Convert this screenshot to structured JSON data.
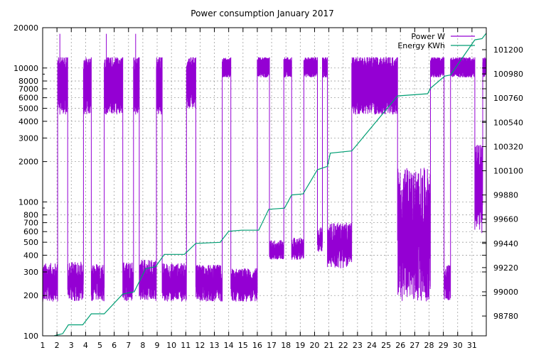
{
  "chart_data": {
    "type": "line",
    "title": "Power consumption January 2017",
    "x": {
      "min": 1,
      "max": 32,
      "ticks": [
        1,
        2,
        3,
        4,
        5,
        6,
        7,
        8,
        9,
        10,
        11,
        12,
        13,
        14,
        15,
        16,
        17,
        18,
        19,
        20,
        21,
        22,
        23,
        24,
        25,
        26,
        27,
        28,
        29,
        30,
        31
      ],
      "tick_labels": [
        "1",
        "2",
        "3",
        "4",
        "5",
        "6",
        "7",
        "8",
        "9",
        "10",
        "11",
        "12",
        "13",
        "14",
        "15",
        "16",
        "17",
        "18",
        "19",
        "20",
        "21",
        "22",
        "23",
        "24",
        "25",
        "26",
        "27",
        "28",
        "29",
        "30",
        "31"
      ]
    },
    "y_left": {
      "scale": "log",
      "min": 100,
      "max": 20000,
      "ticks": [
        100,
        200,
        300,
        400,
        500,
        600,
        700,
        800,
        1000,
        2000,
        3000,
        4000,
        5000,
        6000,
        7000,
        8000,
        10000,
        20000
      ],
      "tick_labels": [
        "100",
        "200",
        "300",
        "400",
        "500",
        "600",
        "700",
        "800",
        "1000",
        "2000",
        "3000",
        "4000",
        "5000",
        "6000",
        "7000",
        "8000",
        "10000",
        "20000"
      ]
    },
    "y_right": {
      "scale": "linear",
      "min": 98600,
      "max": 101400,
      "ticks": [
        98780,
        99000,
        99220,
        99440,
        99660,
        99880,
        100100,
        100320,
        100540,
        100760,
        100980,
        101200
      ],
      "tick_labels": [
        "98780",
        "99000",
        "99220",
        "99440",
        "99660",
        "99880",
        "100100",
        "100320",
        "100540",
        "100760",
        "100980",
        "101200"
      ]
    },
    "grid": true,
    "legend_position": "top-right",
    "series": [
      {
        "name": "Power W",
        "axis": "left",
        "color": "#9400d3",
        "segments": [
          {
            "from": 1.0,
            "to": 2.05,
            "level": "low",
            "low": 180,
            "high": 350
          },
          {
            "from": 2.05,
            "to": 2.75,
            "level": "high",
            "low": 4500,
            "high": 12000,
            "spike": 18000
          },
          {
            "from": 2.75,
            "to": 3.85,
            "level": "low",
            "low": 180,
            "high": 360
          },
          {
            "from": 3.85,
            "to": 4.4,
            "level": "high",
            "low": 4500,
            "high": 12000
          },
          {
            "from": 4.4,
            "to": 5.3,
            "level": "low",
            "low": 180,
            "high": 350
          },
          {
            "from": 5.3,
            "to": 6.6,
            "level": "high",
            "low": 4500,
            "high": 12000,
            "spike": 18000
          },
          {
            "from": 6.6,
            "to": 7.35,
            "level": "low",
            "low": 180,
            "high": 360
          },
          {
            "from": 7.35,
            "to": 7.75,
            "level": "high",
            "low": 4500,
            "high": 12000,
            "spike": 18000
          },
          {
            "from": 7.75,
            "to": 8.95,
            "level": "low",
            "low": 180,
            "high": 370
          },
          {
            "from": 8.95,
            "to": 9.35,
            "level": "high",
            "low": 4500,
            "high": 12000
          },
          {
            "from": 9.35,
            "to": 11.05,
            "level": "low",
            "low": 180,
            "high": 350
          },
          {
            "from": 11.05,
            "to": 11.7,
            "level": "high",
            "low": 5000,
            "high": 12000
          },
          {
            "from": 11.7,
            "to": 13.55,
            "level": "low",
            "low": 180,
            "high": 340
          },
          {
            "from": 13.55,
            "to": 14.15,
            "level": "high",
            "low": 8500,
            "high": 12000
          },
          {
            "from": 14.15,
            "to": 16.0,
            "level": "low",
            "low": 180,
            "high": 320
          },
          {
            "from": 16.0,
            "to": 16.85,
            "level": "high",
            "low": 8500,
            "high": 12000
          },
          {
            "from": 16.85,
            "to": 17.85,
            "level": "low",
            "low": 370,
            "high": 520
          },
          {
            "from": 17.85,
            "to": 18.4,
            "level": "high",
            "low": 8500,
            "high": 12000
          },
          {
            "from": 18.4,
            "to": 19.25,
            "level": "low",
            "low": 370,
            "high": 540
          },
          {
            "from": 19.25,
            "to": 20.2,
            "level": "high",
            "low": 8500,
            "high": 12000
          },
          {
            "from": 20.2,
            "to": 20.55,
            "level": "low",
            "low": 420,
            "high": 650
          },
          {
            "from": 20.55,
            "to": 20.9,
            "level": "high",
            "low": 8500,
            "high": 12000
          },
          {
            "from": 20.9,
            "to": 22.6,
            "level": "low",
            "low": 320,
            "high": 700
          },
          {
            "from": 22.6,
            "to": 25.8,
            "level": "high",
            "low": 4500,
            "high": 12000
          },
          {
            "from": 25.8,
            "to": 28.1,
            "level": "low",
            "low": 180,
            "high": 1800
          },
          {
            "from": 28.1,
            "to": 29.05,
            "level": "high",
            "low": 8500,
            "high": 12000
          },
          {
            "from": 29.05,
            "to": 29.5,
            "level": "low",
            "low": 180,
            "high": 340
          },
          {
            "from": 29.5,
            "to": 31.2,
            "level": "high",
            "low": 8500,
            "high": 12000
          },
          {
            "from": 31.2,
            "to": 31.75,
            "level": "low",
            "low": 580,
            "high": 2700
          },
          {
            "from": 31.75,
            "to": 32.0,
            "level": "high",
            "low": 8500,
            "high": 12000
          }
        ]
      },
      {
        "name": "Energy KWh",
        "axis": "right",
        "color": "#009e73",
        "points": [
          [
            1.8,
            98600
          ],
          [
            2.4,
            98620
          ],
          [
            2.8,
            98700
          ],
          [
            3.8,
            98700
          ],
          [
            4.4,
            98800
          ],
          [
            5.3,
            98800
          ],
          [
            6.6,
            98980
          ],
          [
            7.4,
            99000
          ],
          [
            8.2,
            99210
          ],
          [
            8.9,
            99230
          ],
          [
            9.5,
            99340
          ],
          [
            10.9,
            99340
          ],
          [
            11.7,
            99440
          ],
          [
            13.4,
            99450
          ],
          [
            14.0,
            99550
          ],
          [
            14.9,
            99560
          ],
          [
            16.1,
            99560
          ],
          [
            16.8,
            99750
          ],
          [
            17.9,
            99760
          ],
          [
            18.4,
            99880
          ],
          [
            19.2,
            99890
          ],
          [
            20.2,
            100110
          ],
          [
            20.9,
            100140
          ],
          [
            21.1,
            100260
          ],
          [
            22.6,
            100280
          ],
          [
            25.8,
            100780
          ],
          [
            27.9,
            100800
          ],
          [
            28.1,
            100850
          ],
          [
            29.1,
            100960
          ],
          [
            29.5,
            100970
          ],
          [
            31.2,
            101290
          ],
          [
            31.7,
            101300
          ],
          [
            32.0,
            101350
          ]
        ]
      }
    ]
  }
}
